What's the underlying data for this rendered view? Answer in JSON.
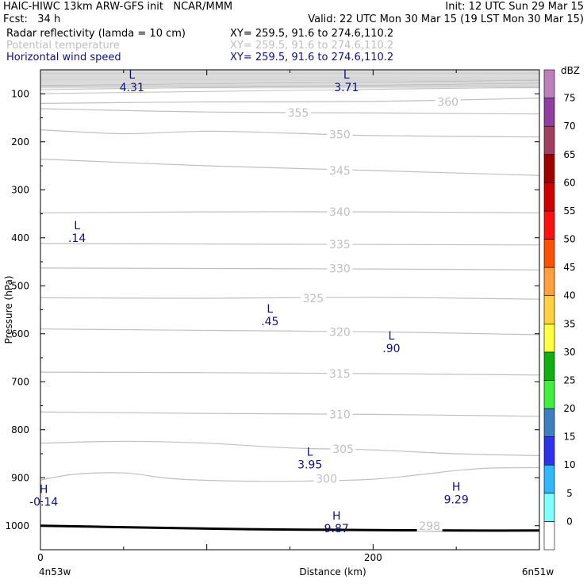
{
  "header": {
    "title": "HAIC-HIWC 13km ARW-GFS init   NCAR/MMM",
    "init": "Init: 12 UTC Sun 29 Mar 15",
    "fcst": "Fcst:   34 h",
    "valid": "Valid: 22 UTC Mon 30 Mar 15 (19 LST Mon 30 Mar 15)",
    "fields": [
      {
        "name": "Radar reflectivity (lamda = 10 cm)",
        "xy": "XY= 259.5, 91.6 to 274.6,110.2"
      },
      {
        "name": "Potential temperature",
        "xy": "XY= 259.5, 91.6 to 274.6,110.2"
      },
      {
        "name": "Horizontal wind speed",
        "xy": "XY= 259.5, 91.6 to 274.6,110.2"
      }
    ]
  },
  "colors": {
    "frame": "#000000",
    "theta_contour": "#c0c0c0",
    "wind_label": "#101080",
    "terrain": "#000000"
  },
  "chart_data": {
    "type": "contour",
    "xlabel": "Distance (km)",
    "ylabel": "Pressure (hPa)",
    "x_ticks": [
      0,
      200
    ],
    "x_end_labels": [
      "4n53w",
      "6n51w"
    ],
    "xlim": [
      0,
      300
    ],
    "ylim": [
      1050,
      50
    ],
    "y_ticks": [
      100,
      200,
      300,
      400,
      500,
      600,
      700,
      800,
      900,
      1000
    ],
    "theta_contours": [
      {
        "level": 298,
        "label": "298",
        "label_x": 234,
        "label_p": 1000
      },
      {
        "level": 300,
        "label": "300",
        "label_x": 172,
        "label_p": 902,
        "x": [
          0,
          20,
          50,
          80,
          120,
          160,
          200,
          230,
          250,
          270,
          300
        ],
        "p": [
          905,
          893,
          890,
          902,
          907,
          907,
          903,
          893,
          885,
          880,
          879
        ]
      },
      {
        "level": 305,
        "label": "305",
        "label_x": 182,
        "label_p": 840,
        "x": [
          0,
          50,
          100,
          150,
          200,
          250,
          300
        ],
        "p": [
          828,
          824,
          828,
          838,
          842,
          850,
          854
        ]
      },
      {
        "level": 310,
        "label": "310",
        "label_x": 180,
        "label_p": 768,
        "x": [
          0,
          100,
          200,
          300
        ],
        "p": [
          763,
          766,
          768,
          772
        ]
      },
      {
        "level": 315,
        "label": "315",
        "label_x": 180,
        "label_p": 683,
        "x": [
          0,
          100,
          200,
          300
        ],
        "p": [
          680,
          681,
          683,
          686
        ]
      },
      {
        "level": 320,
        "label": "320",
        "label_x": 180,
        "label_p": 596,
        "x": [
          0,
          100,
          200,
          300
        ],
        "p": [
          590,
          593,
          596,
          602
        ]
      },
      {
        "level": 325,
        "label": "325",
        "label_x": 164,
        "label_p": 526,
        "x": [
          0,
          100,
          200,
          300
        ],
        "p": [
          525,
          526,
          524,
          528
        ]
      },
      {
        "level": 330,
        "label": "330",
        "label_x": 180,
        "label_p": 464,
        "x": [
          0,
          100,
          200,
          300
        ],
        "p": [
          463,
          464,
          465,
          467
        ]
      },
      {
        "level": 335,
        "label": "335",
        "label_x": 180,
        "label_p": 414,
        "x": [
          0,
          100,
          200,
          300
        ],
        "p": [
          412,
          413,
          414,
          415
        ]
      },
      {
        "level": 340,
        "label": "340",
        "label_x": 180,
        "label_p": 346,
        "x": [
          0,
          100,
          200,
          300
        ],
        "p": [
          348,
          346,
          346,
          348
        ]
      },
      {
        "level": 345,
        "label": "345",
        "label_x": 180,
        "label_p": 260,
        "x": [
          0,
          100,
          200,
          300
        ],
        "p": [
          236,
          250,
          260,
          270
        ]
      },
      {
        "level": 350,
        "label": "350",
        "label_x": 180,
        "label_p": 185,
        "x": [
          0,
          50,
          100,
          150,
          200,
          300
        ],
        "p": [
          175,
          183,
          178,
          182,
          187,
          190
        ]
      },
      {
        "level": 355,
        "label": "355",
        "label_x": 155,
        "label_p": 139,
        "x": [
          0,
          100,
          200,
          300
        ],
        "p": [
          131,
          138,
          140,
          142
        ]
      },
      {
        "level": 360,
        "label": "360",
        "label_x": 245,
        "label_p": 117,
        "x": [
          0,
          100,
          200,
          300
        ],
        "p": [
          120,
          117,
          116,
          109
        ]
      }
    ],
    "wind_extrema": [
      {
        "kind": "L",
        "value": "4.31",
        "x": 55,
        "p": 68
      },
      {
        "kind": "L",
        "value": "3.71",
        "x": 184,
        "p": 68
      },
      {
        "kind": "L",
        "value": ".14",
        "x": 22,
        "p": 382
      },
      {
        "kind": "L",
        "value": ".45",
        "x": 138,
        "p": 556
      },
      {
        "kind": "L",
        "value": ".90",
        "x": 211,
        "p": 612
      },
      {
        "kind": "L",
        "value": "3.95",
        "x": 162,
        "p": 854
      },
      {
        "kind": "H",
        "value": "-0.14",
        "x": 2,
        "p": 932
      },
      {
        "kind": "H",
        "value": "9.29",
        "x": 250,
        "p": 927
      },
      {
        "kind": "H",
        "value": "9.87",
        "x": 178,
        "p": 987
      }
    ],
    "terrain_surface": {
      "x": [
        0,
        50,
        100,
        150,
        200,
        250,
        300
      ],
      "p": [
        1000,
        1003,
        1006,
        1008,
        1009,
        1010,
        1010
      ]
    },
    "colorbar": {
      "unit": "dBZ",
      "levels": [
        "0",
        "5",
        "10",
        "15",
        "20",
        "25",
        "30",
        "35",
        "40",
        "45",
        "50",
        "55",
        "60",
        "65",
        "70",
        "75"
      ],
      "colors": [
        "#ffffff",
        "#7fffff",
        "#30b8ff",
        "#3030f0",
        "#3f7fbf",
        "#3ff03f",
        "#10b010",
        "#ffff3f",
        "#ffd03f",
        "#ff9f3f",
        "#ff5000",
        "#ff1010",
        "#d00000",
        "#a00000",
        "#a03f5f",
        "#8f3f9f",
        "#bf7fbf"
      ]
    }
  }
}
